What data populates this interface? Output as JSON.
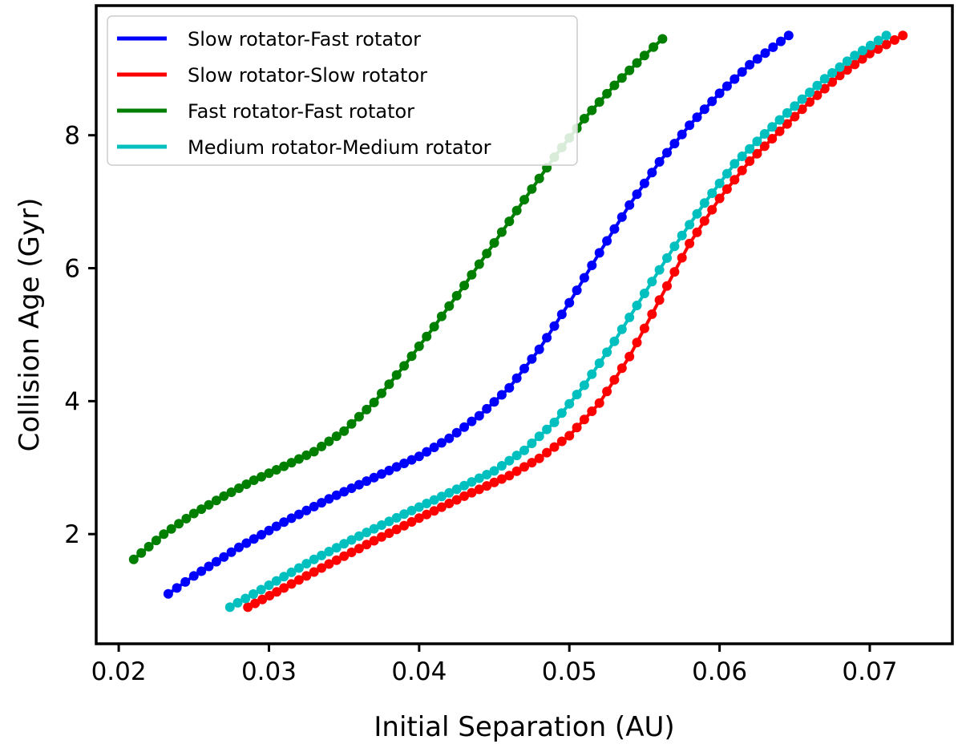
{
  "chart_data": {
    "type": "scatter",
    "xlabel": "Initial Separation (AU)",
    "ylabel": "Collision Age (Gyr)",
    "xlim": [
      0.0185,
      0.0755
    ],
    "ylim": [
      0.35,
      9.95
    ],
    "xticks": [
      0.02,
      0.03,
      0.04,
      0.05,
      0.06,
      0.07
    ],
    "xtick_labels": [
      "0.02",
      "0.03",
      "0.04",
      "0.05",
      "0.06",
      "0.07"
    ],
    "yticks": [
      2,
      4,
      6,
      8
    ],
    "ytick_labels": [
      "2",
      "4",
      "6",
      "8"
    ],
    "grid": false,
    "legend_position": "upper-left",
    "series": [
      {
        "name": "Slow rotator-Fast rotator",
        "color": "#0000ff",
        "x": [
          0.0233,
          0.025,
          0.028,
          0.031,
          0.034,
          0.037,
          0.04,
          0.042,
          0.044,
          0.046,
          0.048,
          0.05,
          0.052,
          0.054,
          0.056,
          0.058,
          0.06,
          0.062,
          0.0646
        ],
        "y": [
          1.1,
          1.37,
          1.8,
          2.18,
          2.53,
          2.85,
          3.17,
          3.44,
          3.78,
          4.2,
          4.78,
          5.48,
          6.23,
          6.95,
          7.6,
          8.15,
          8.63,
          9.06,
          9.5
        ]
      },
      {
        "name": "Slow rotator-Slow rotator",
        "color": "#ff0000",
        "x": [
          0.0286,
          0.031,
          0.034,
          0.037,
          0.04,
          0.043,
          0.046,
          0.048,
          0.05,
          0.052,
          0.054,
          0.056,
          0.058,
          0.06,
          0.062,
          0.064,
          0.066,
          0.068,
          0.07,
          0.0722
        ],
        "y": [
          0.9,
          1.19,
          1.55,
          1.9,
          2.24,
          2.57,
          2.88,
          3.14,
          3.48,
          3.97,
          4.67,
          5.52,
          6.37,
          7.05,
          7.61,
          8.06,
          8.5,
          8.9,
          9.23,
          9.5
        ]
      },
      {
        "name": "Fast rotator-Fast rotator",
        "color": "#007f00",
        "x": [
          0.021,
          0.023,
          0.025,
          0.027,
          0.029,
          0.031,
          0.033,
          0.035,
          0.037,
          0.039,
          0.041,
          0.043,
          0.045,
          0.047,
          0.049,
          0.051,
          0.053,
          0.055,
          0.0562
        ],
        "y": [
          1.62,
          2.0,
          2.31,
          2.57,
          2.81,
          3.02,
          3.24,
          3.55,
          3.98,
          4.53,
          5.12,
          5.74,
          6.38,
          7.03,
          7.67,
          8.25,
          8.75,
          9.2,
          9.45
        ]
      },
      {
        "name": "Medium rotator-Medium rotator",
        "color": "#00bfbf",
        "x": [
          0.0274,
          0.03,
          0.033,
          0.036,
          0.039,
          0.042,
          0.045,
          0.047,
          0.049,
          0.051,
          0.053,
          0.055,
          0.057,
          0.059,
          0.061,
          0.063,
          0.065,
          0.067,
          0.069,
          0.0711
        ],
        "y": [
          0.9,
          1.23,
          1.62,
          1.97,
          2.3,
          2.62,
          2.95,
          3.26,
          3.68,
          4.24,
          4.9,
          5.62,
          6.33,
          6.98,
          7.57,
          8.02,
          8.44,
          8.85,
          9.2,
          9.5
        ]
      }
    ]
  }
}
